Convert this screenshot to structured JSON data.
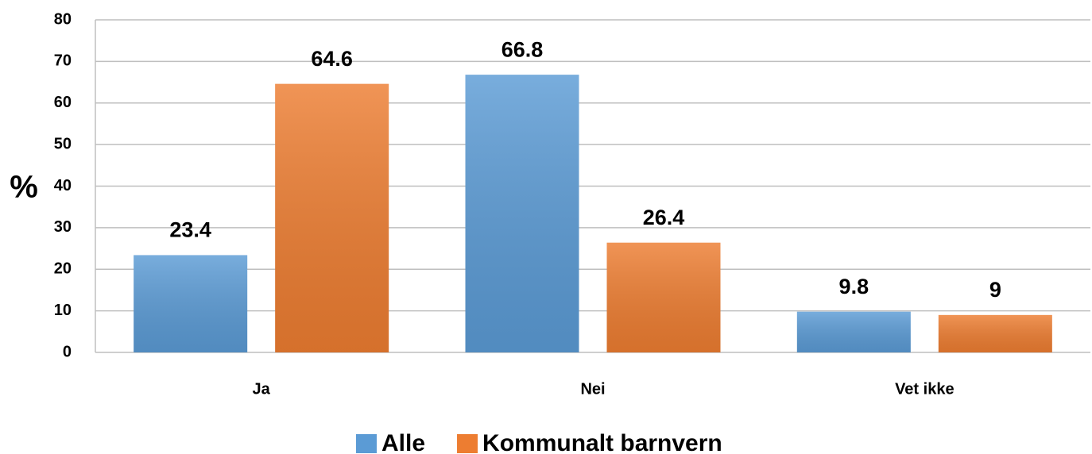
{
  "chart_data": {
    "type": "bar",
    "y_label": "%",
    "categories": [
      "Ja",
      "Nei",
      "Vet ikke"
    ],
    "series": [
      {
        "name": "Alle",
        "color": "#5b9bd5",
        "values": [
          23.4,
          66.8,
          9.8
        ]
      },
      {
        "name": "Kommunalt barnvern",
        "color": "#ed7d31",
        "values": [
          64.6,
          26.4,
          9
        ]
      }
    ],
    "ylim": [
      0,
      80
    ],
    "yticks": [
      0,
      10,
      20,
      30,
      40,
      50,
      60,
      70,
      80
    ],
    "grid": true,
    "legend": "bottom"
  }
}
